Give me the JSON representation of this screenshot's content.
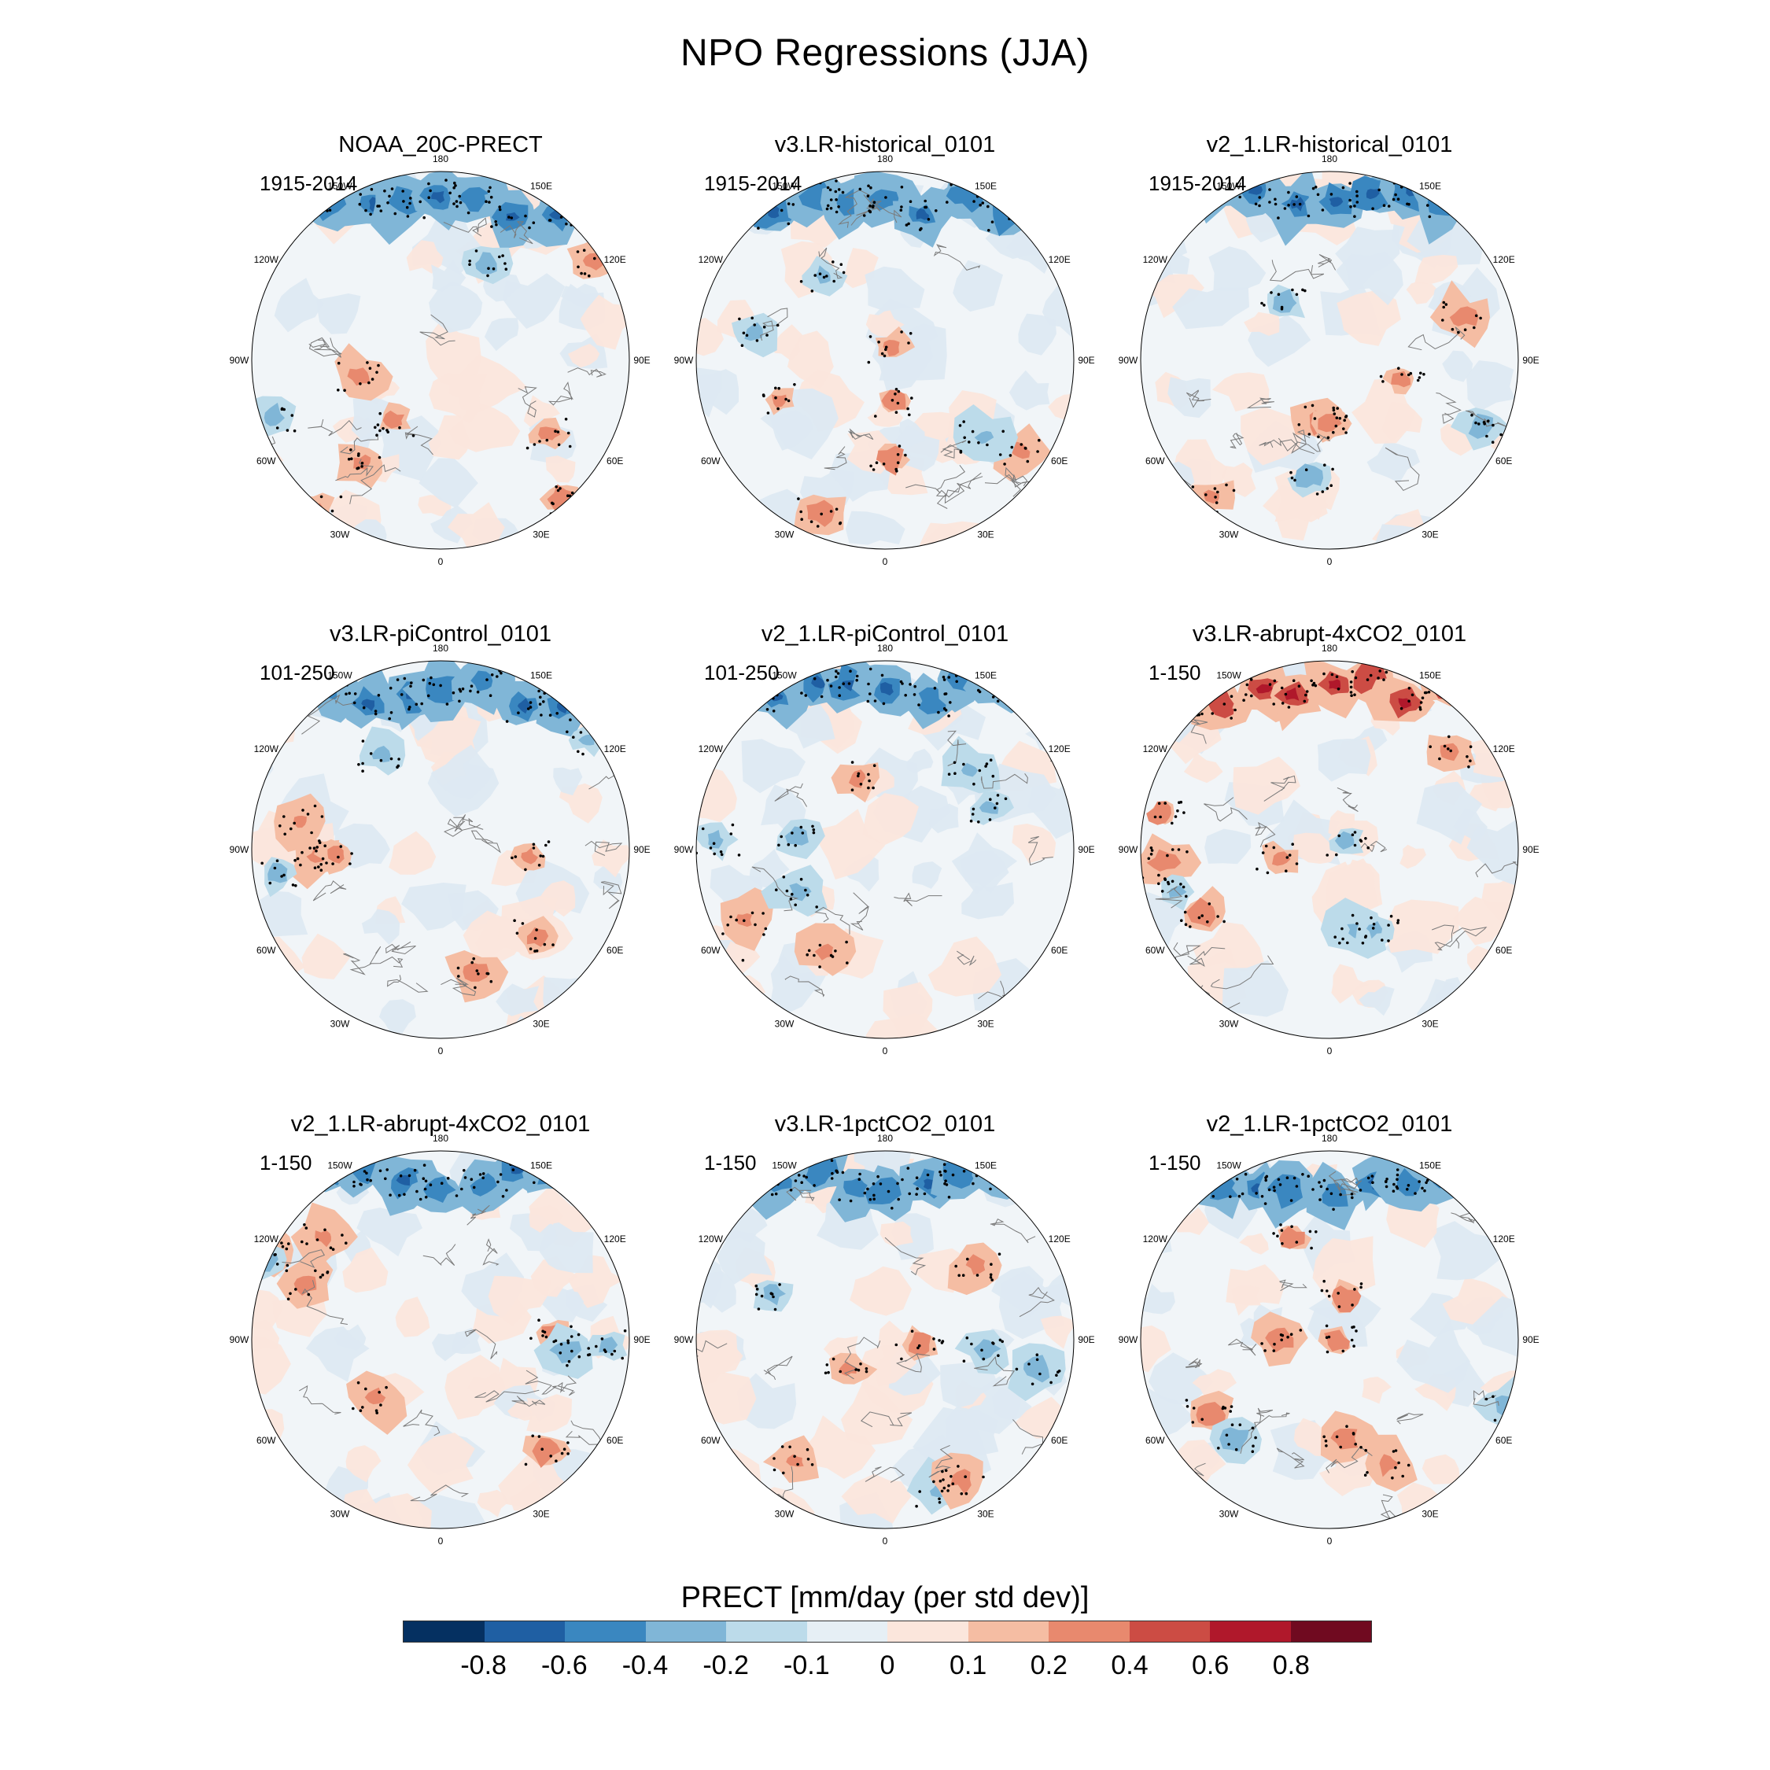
{
  "title": "NPO Regressions (JJA)",
  "lon_labels": [
    "180",
    "150E",
    "120E",
    "90E",
    "60E",
    "30E",
    "0",
    "30W",
    "60W",
    "90W",
    "120W",
    "150W"
  ],
  "panels": [
    {
      "title": "NOAA_20C-PRECT",
      "period": "1915-2014"
    },
    {
      "title": "v3.LR-historical_0101",
      "period": "1915-2014"
    },
    {
      "title": "v2_1.LR-historical_0101",
      "period": "1915-2014"
    },
    {
      "title": "v3.LR-piControl_0101",
      "period": "101-250"
    },
    {
      "title": "v2_1.LR-piControl_0101",
      "period": "101-250"
    },
    {
      "title": "v3.LR-abrupt-4xCO2_0101",
      "period": "1-150"
    },
    {
      "title": "v2_1.LR-abrupt-4xCO2_0101",
      "period": "1-150"
    },
    {
      "title": "v3.LR-1pctCO2_0101",
      "period": "1-150"
    },
    {
      "title": "v2_1.LR-1pctCO2_0101",
      "period": "1-150"
    }
  ],
  "colorbar": {
    "title": "PRECT [mm/day (per std dev)]",
    "ticks": [
      "-0.8",
      "-0.6",
      "-0.4",
      "-0.2",
      "-0.1",
      "0",
      "0.1",
      "0.2",
      "0.4",
      "0.6",
      "0.8"
    ],
    "colors": [
      "#053061",
      "#1f5fa3",
      "#3a87c0",
      "#80b6d7",
      "#bcdbea",
      "#e6eff5",
      "#fbe6dc",
      "#f5bda3",
      "#e8896e",
      "#cc4c44",
      "#b0182b",
      "#700a20"
    ]
  }
}
